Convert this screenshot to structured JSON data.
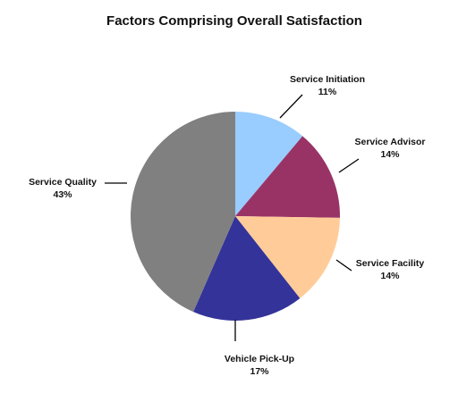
{
  "chart_data": {
    "type": "pie",
    "title": "Factors Comprising Overall Satisfaction",
    "slices": [
      {
        "name": "Service Initiation",
        "value": 11,
        "percent_label": "11%",
        "color": "#99ccff"
      },
      {
        "name": "Service Advisor",
        "value": 14,
        "percent_label": "14%",
        "color": "#993366"
      },
      {
        "name": "Service Facility",
        "value": 14,
        "percent_label": "14%",
        "color": "#ffcc99"
      },
      {
        "name": "Vehicle Pick-Up",
        "value": 17,
        "percent_label": "17%",
        "color": "#333399"
      },
      {
        "name": "Service Quality",
        "value": 43,
        "percent_label": "43%",
        "color": "#808080"
      }
    ]
  }
}
